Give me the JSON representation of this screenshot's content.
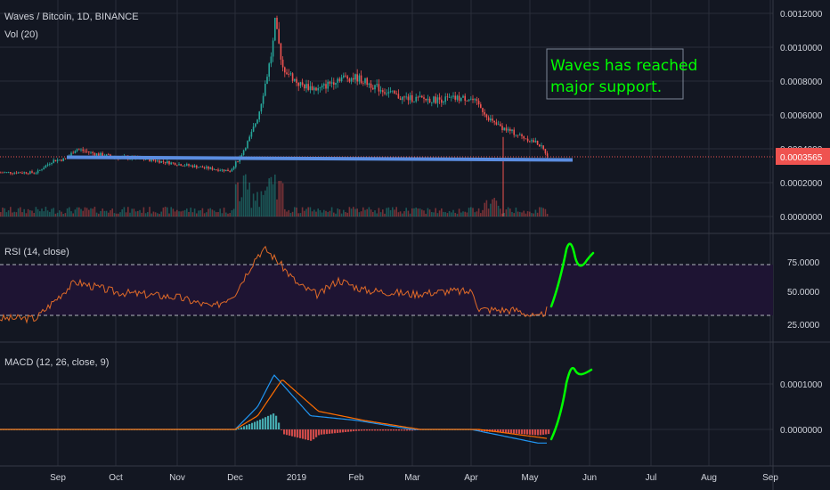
{
  "chart_data": [
    {
      "type": "candlestick",
      "title": "Waves / Bitcoin, 1D, BINANCE",
      "volume_label": "Vol (20)",
      "price_axis_ticks": [
        "0.0012000",
        "0.0010000",
        "0.0008000",
        "0.0006000",
        "0.0004000",
        "0.0002000",
        "0.0000000"
      ],
      "last_price": "0.0003565",
      "x_ticks": [
        "Sep",
        "Oct",
        "Nov",
        "Dec",
        "2019",
        "Feb",
        "Mar",
        "Apr",
        "May",
        "Jun",
        "Jul",
        "Aug",
        "Sep"
      ],
      "close_points": [
        [
          "Aug 20",
          0.00026
        ],
        [
          "Aug 28",
          0.00033
        ],
        [
          "Sep 5",
          0.00034
        ],
        [
          "Sep 10",
          0.0004
        ],
        [
          "Sep 20",
          0.00037
        ],
        [
          "Oct 1",
          0.00035
        ],
        [
          "Oct 15",
          0.00034
        ],
        [
          "Nov 1",
          0.00031
        ],
        [
          "Nov 20",
          0.00028
        ],
        [
          "Nov 28",
          0.00027
        ],
        [
          "Dec 3",
          0.00035
        ],
        [
          "Dec 8",
          0.00047
        ],
        [
          "Dec 12",
          0.0006
        ],
        [
          "Dec 16",
          0.00082
        ],
        [
          "Dec 19",
          0.001
        ],
        [
          "Dec 20",
          0.00115
        ],
        [
          "Dec 24",
          0.00088
        ],
        [
          "Jan 2",
          0.00078
        ],
        [
          "Jan 12",
          0.00075
        ],
        [
          "Jan 22",
          0.00082
        ],
        [
          "Feb 1",
          0.00082
        ],
        [
          "Feb 12",
          0.00076
        ],
        [
          "Feb 25",
          0.0007
        ],
        [
          "Mar 12",
          0.00069
        ],
        [
          "Mar 30",
          0.0007
        ],
        [
          "Apr 5",
          0.00065
        ],
        [
          "Apr 12",
          0.00055
        ],
        [
          "Apr 25",
          0.00048
        ],
        [
          "May 5",
          0.00043
        ],
        [
          "May 10",
          0.0003565
        ]
      ],
      "annotations": [
        {
          "kind": "horizontal-line",
          "label": "support",
          "value": 0.00037,
          "color": "#5b8de0"
        },
        {
          "kind": "text",
          "lines": [
            "Waves has reached",
            "major support."
          ],
          "color": "#00ff00"
        }
      ],
      "colors": {
        "up": "#26a69a",
        "down": "#ef5350"
      }
    },
    {
      "type": "line",
      "title": "RSI (14, close)",
      "y_ticks": [
        "75.0000",
        "50.0000",
        "25.0000"
      ],
      "bands": [
        30,
        70
      ],
      "series": [
        {
          "name": "RSI",
          "color": "#e06a28",
          "points": [
            [
              "Aug 20",
              22
            ],
            [
              "Sep 5",
              50
            ],
            [
              "Sep 10",
              58
            ],
            [
              "Oct 1",
              48
            ],
            [
              "Nov 1",
              43
            ],
            [
              "Nov 20",
              33
            ],
            [
              "Dec 1",
              47
            ],
            [
              "Dec 12",
              85
            ],
            [
              "Dec 16",
              90
            ],
            [
              "Dec 22",
              78
            ],
            [
              "Jan 2",
              55
            ],
            [
              "Jan 12",
              45
            ],
            [
              "Jan 22",
              60
            ],
            [
              "Feb 5",
              50
            ],
            [
              "Mar 1",
              46
            ],
            [
              "Mar 20",
              49
            ],
            [
              "Apr 2",
              48
            ],
            [
              "Apr 5",
              31
            ],
            [
              "Apr 25",
              30
            ],
            [
              "May 5",
              22
            ],
            [
              "May 10",
              31
            ]
          ]
        }
      ],
      "projection_color": "#00ff00"
    },
    {
      "type": "line",
      "title": "MACD (12, 26, close, 9)",
      "y_ticks": [
        "0.0001000",
        "0.0000000"
      ],
      "series": [
        {
          "name": "MACD",
          "color": "#2196f3",
          "points": [
            [
              "Aug 20",
              0.0
            ],
            [
              "Dec 1",
              0.0
            ],
            [
              "Dec 12",
              5e-05
            ],
            [
              "Dec 20",
              0.00012
            ],
            [
              "Jan 8",
              3e-05
            ],
            [
              "Feb 1",
              2e-05
            ],
            [
              "Mar 1",
              0.0
            ],
            [
              "Apr 1",
              0.0
            ],
            [
              "May 5",
              -3e-05
            ]
          ]
        },
        {
          "name": "Signal",
          "color": "#ff6d00",
          "points": [
            [
              "Aug 20",
              0.0
            ],
            [
              "Dec 1",
              0.0
            ],
            [
              "Dec 12",
              3e-05
            ],
            [
              "Dec 24",
              0.00011
            ],
            [
              "Jan 12",
              4e-05
            ],
            [
              "Feb 5",
              2e-05
            ],
            [
              "Mar 5",
              0.0
            ],
            [
              "Apr 5",
              0.0
            ],
            [
              "May 10",
              -2e-05
            ]
          ]
        }
      ],
      "projection_color": "#00ff00"
    }
  ]
}
